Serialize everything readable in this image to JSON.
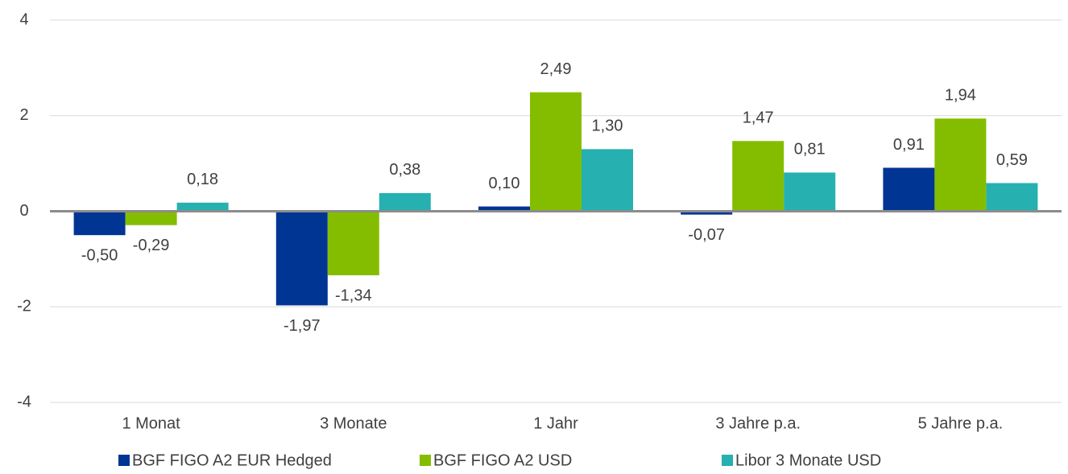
{
  "chart_data": {
    "type": "bar",
    "categories": [
      "1 Monat",
      "3 Monate",
      "1 Jahr",
      "3 Jahre p.a.",
      "5 Jahre p.a."
    ],
    "series": [
      {
        "name": "BGF FIGO A2 EUR Hedged",
        "color": "#003594",
        "values": [
          -0.5,
          -1.97,
          0.1,
          -0.07,
          0.91
        ],
        "value_labels": [
          "-0,50",
          "-1,97",
          "0,10",
          "-0,07",
          "0,91"
        ]
      },
      {
        "name": "BGF FIGO A2 USD",
        "color": "#84bd00",
        "values": [
          -0.29,
          -1.34,
          2.49,
          1.47,
          1.94
        ],
        "value_labels": [
          "-0,29",
          "-1,34",
          "2,49",
          "1,47",
          "1,94"
        ]
      },
      {
        "name": "Libor 3 Monate USD",
        "color": "#26b0b0",
        "values": [
          0.18,
          0.38,
          1.3,
          0.81,
          0.59
        ],
        "value_labels": [
          "0,18",
          "0,38",
          "1,30",
          "0,81",
          "0,59"
        ]
      }
    ],
    "ylim": [
      -4,
      4
    ],
    "yticks": [
      -4,
      -2,
      0,
      2,
      4
    ],
    "grid": true,
    "legend": "bottom"
  }
}
